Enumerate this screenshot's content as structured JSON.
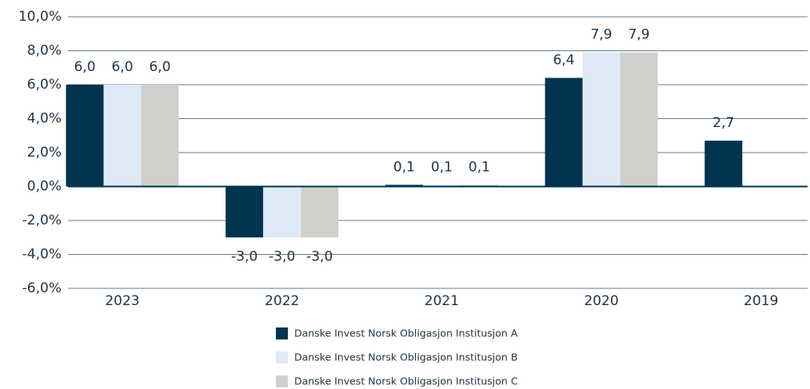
{
  "chart_data": {
    "type": "bar",
    "categories": [
      "2023",
      "2022",
      "2021",
      "2020",
      "2019"
    ],
    "series": [
      {
        "name": "Danske Invest Norsk Obligasjon Institusjon A",
        "color": "#00344f",
        "values": [
          6.0,
          -3.0,
          0.1,
          6.4,
          2.7
        ],
        "value_labels": [
          "6,0",
          "-3,0",
          "0,1",
          "6,4",
          "2,7"
        ]
      },
      {
        "name": "Danske Invest Norsk Obligasjon Institusjon B",
        "color": "#dde9f5",
        "values": [
          6.0,
          -3.0,
          0.1,
          7.9,
          null
        ],
        "value_labels": [
          "6,0",
          "-3,0",
          "0,1",
          "7,9",
          null
        ]
      },
      {
        "name": "Danske Invest Norsk Obligasjon Institusjon C",
        "color": "#d0d0cb",
        "values": [
          6.0,
          -3.0,
          0.1,
          7.9,
          null
        ],
        "value_labels": [
          "6,0",
          "-3,0",
          "0,1",
          "7,9",
          null
        ]
      }
    ],
    "ylim": [
      -6,
      10
    ],
    "yticks": [
      {
        "value": -6,
        "label": "-6,0%"
      },
      {
        "value": -4,
        "label": "-4,0%"
      },
      {
        "value": -2,
        "label": "-2,0%"
      },
      {
        "value": 0,
        "label": "0,0%"
      },
      {
        "value": 2,
        "label": "2,0%"
      },
      {
        "value": 4,
        "label": "4,0%"
      },
      {
        "value": 6,
        "label": "6,0%"
      },
      {
        "value": 8,
        "label": "8,0%"
      },
      {
        "value": 10,
        "label": "10,0%"
      }
    ],
    "grid": true
  }
}
